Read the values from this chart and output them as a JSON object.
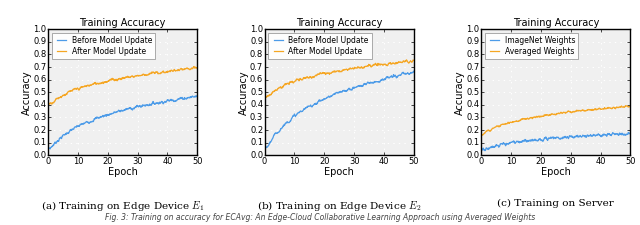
{
  "title": "Training Accuracy",
  "xlabel": "Epoch",
  "ylabel": "Accuracy",
  "ylim": [
    0.0,
    1.0
  ],
  "xlim": [
    0,
    50
  ],
  "yticks": [
    0.0,
    0.1,
    0.2,
    0.3,
    0.4,
    0.5,
    0.6,
    0.7,
    0.8,
    0.9,
    1.0
  ],
  "xticks": [
    0,
    10,
    20,
    30,
    40,
    50
  ],
  "color_blue": "#4C9BE8",
  "color_orange": "#F5A623",
  "subplot_labels": [
    "(a) Training on Edge Device $E_1$",
    "(b) Training on Edge Device $E_2$",
    "(c) Training on Server"
  ],
  "legend1": [
    "Before Model Update",
    "After Model Update"
  ],
  "legend2": [
    "Before Model Update",
    "After Model Update"
  ],
  "legend3": [
    "ImageNet Weights",
    "Averaged Weights"
  ]
}
